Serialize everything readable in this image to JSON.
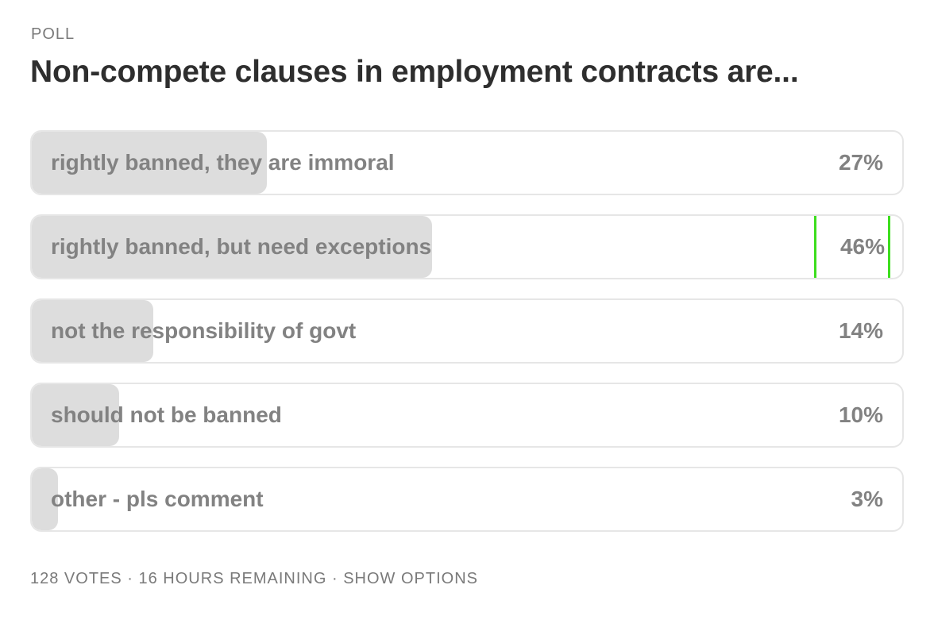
{
  "poll": {
    "label": "POLL",
    "question": "Non-compete clauses in employment contracts are...",
    "options": [
      {
        "text": "rightly banned, they are immoral",
        "percent_label": "27%",
        "percent": 27
      },
      {
        "text": "rightly banned, but need exceptions",
        "percent_label": "46%",
        "percent": 46
      },
      {
        "text": "not the responsibility of govt",
        "percent_label": "14%",
        "percent": 14
      },
      {
        "text": "should not be banned",
        "percent_label": "10%",
        "percent": 10
      },
      {
        "text": "other - pls comment",
        "percent_label": "3%",
        "percent": 3
      }
    ],
    "footer": {
      "votes": "128 VOTES",
      "separator": " · ",
      "remaining": "16 HOURS REMAINING",
      "show_options": "SHOW OPTIONS"
    }
  },
  "colors": {
    "fill": "#dddddd",
    "border": "#e6e6e6",
    "highlight": "#3dde1e"
  }
}
